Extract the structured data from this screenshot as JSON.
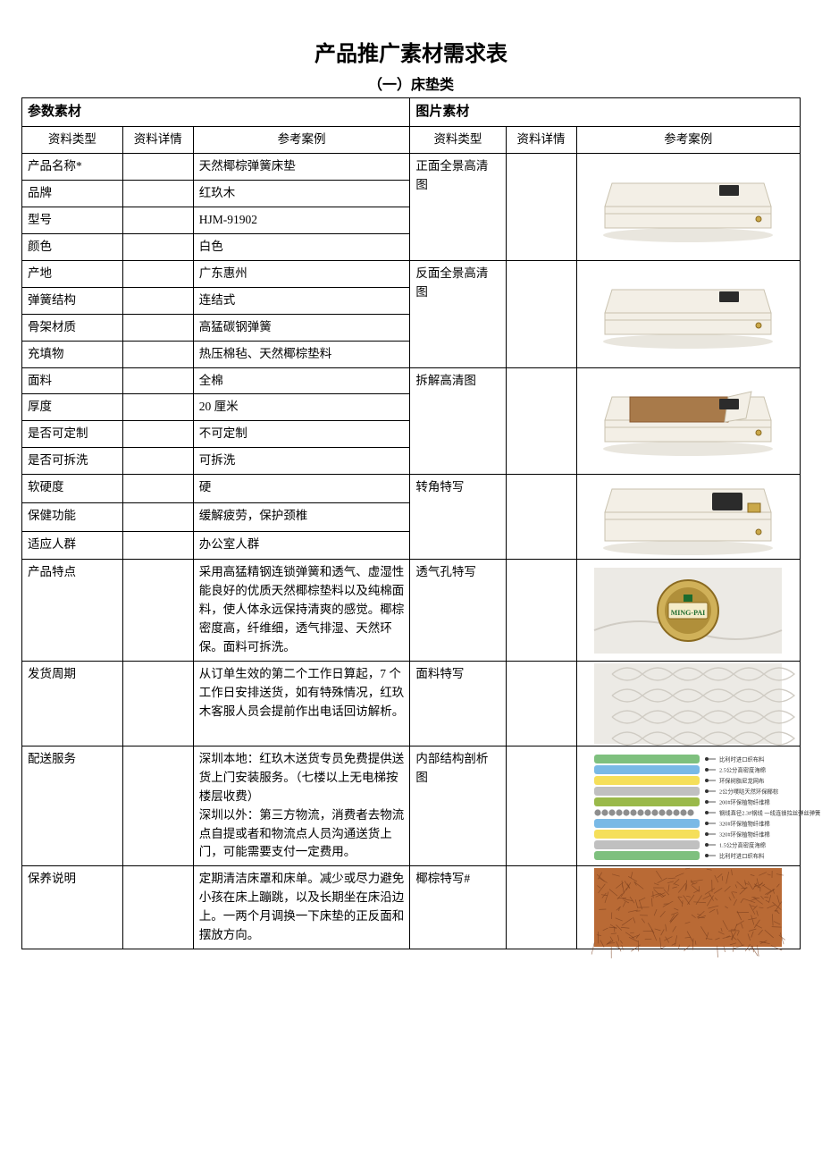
{
  "title": "产品推广素材需求表",
  "subtitle": "（一）床垫类",
  "left_header": "参数素材",
  "right_header": "图片素材",
  "col_headers": {
    "type": "资料类型",
    "detail": "资料详情",
    "example": "参考案例"
  },
  "col_widths": {
    "c1": 100,
    "c2": 70,
    "c3": 215,
    "c4": 95,
    "c5": 70,
    "c6": 222
  },
  "colors": {
    "mattress_body": "#f3efe6",
    "mattress_shadow": "#d9d3c5",
    "mattress_outline": "#c9c2af",
    "inner_brown": "#a87a4a",
    "badge_bg": "#d0b159",
    "badge_inner": "#b08f3a",
    "badge_label_bg": "#f5ecc9",
    "badge_label_text": "#1c6b2e",
    "quilt_bg": "#eceae5",
    "quilt_line": "#d0ccc4",
    "coir_bg": "#b96a35",
    "coir_dark": "#7a3f1e",
    "structure_colors": [
      "#7ec07e",
      "#79b9e6",
      "#f5df5a",
      "#c0c0c0",
      "#9ab94a",
      "#8e8e8e",
      "#79b9e6",
      "#f5df5a",
      "#c0c0c0",
      "#7ec07e"
    ]
  },
  "left_rows": [
    {
      "label": "产品名称*",
      "example": "天然椰棕弹簧床垫"
    },
    {
      "label": "品牌",
      "example": "红玖木"
    },
    {
      "label": "型号",
      "example": "HJM-91902"
    },
    {
      "label": "颜色",
      "example": "白色"
    },
    {
      "label": "产地",
      "example": "广东惠州"
    },
    {
      "label": "弹簧结构",
      "example": "连结式"
    },
    {
      "label": "骨架材质",
      "example": "高猛碳钢弹簧"
    },
    {
      "label": "充填物",
      "example": "热压棉毡、天然椰棕垫料"
    },
    {
      "label": "面料",
      "example": "全棉"
    },
    {
      "label": "厚度",
      "example": "20 厘米"
    },
    {
      "label": "是否可定制",
      "example": "不可定制"
    },
    {
      "label": "是否可拆洗",
      "example": "可拆洗"
    },
    {
      "label": "软硬度",
      "example": "硬"
    },
    {
      "label": "保健功能",
      "example": "缓解疲劳，保护颈椎"
    },
    {
      "label": "适应人群",
      "example": "办公室人群"
    },
    {
      "label": "产品特点",
      "example": "采用高猛精钢连锁弹簧和透气、虚湿性能良好的优质天然椰棕垫料以及纯棉面料，使人体永远保持清爽的感觉。椰棕密度高，纤维细，透气排湿、天然环保。面料可拆洗。"
    },
    {
      "label": "发货周期",
      "example": "从订单生效的第二个工作日算起，7 个工作日安排送货，如有特殊情况，红玖木客服人员会提前作出电话回访解析。"
    },
    {
      "label": "配送服务",
      "example": "深圳本地：红玖木送货专员免费提供送货上门安装服务。（七楼以上无电梯按楼层收费）\n深圳以外：第三方物流，消费者去物流点自提或者和物流点人员沟通送货上门，可能需要支付一定费用。"
    },
    {
      "label": "保养说明",
      "example": "定期清洁床罩和床单。减少或尽力避免小孩在床上蹦跳，以及长期坐在床沿边上。一两个月调换一下床垫的正反面和摆放方向。"
    }
  ],
  "right_rows": [
    {
      "label": "正面全景高清图",
      "img": "mattress-front"
    },
    {
      "label": "反面全景高清图",
      "img": "mattress-back"
    },
    {
      "label": "拆解高清图",
      "img": "mattress-open"
    },
    {
      "label": "转角特写",
      "img": "mattress-corner"
    },
    {
      "label": "透气孔特写",
      "img": "vent-badge"
    },
    {
      "label": "面料特写",
      "img": "quilt-pattern"
    },
    {
      "label": "内部结构剖析图",
      "img": "structure-layers"
    },
    {
      "label": "椰棕特写#",
      "img": "coir-texture"
    }
  ],
  "structure_labels": [
    "比利时进口织布料",
    "2.5公分高密度海绵",
    "环保树脂尼龙网布",
    "2公分噗哒天然环保椰棕",
    "200#环保植物纤维棉",
    "钢线直径2.3#钢线 一线连锁拉丝弹丝弹簧",
    "320#环保植物纤维棉",
    "320#环保植物纤维棉",
    "1.5公分高密度海绵",
    "比利时进口织布料"
  ]
}
